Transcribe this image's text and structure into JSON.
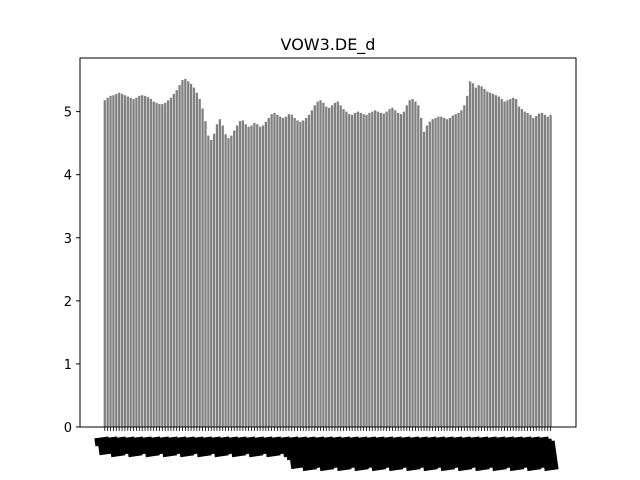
{
  "chart_data": {
    "type": "bar",
    "title": "VOW3.DE_d",
    "xlabel": "",
    "ylabel": "",
    "ylim": [
      0,
      5.85
    ],
    "yticks": [
      0,
      1,
      2,
      3,
      4,
      5
    ],
    "ytick_labels": [
      "0",
      "1",
      "2",
      "3",
      "4",
      "5"
    ],
    "bar_color": "#808080",
    "grid": false,
    "legend": "none",
    "x_tick_labels_note": "illegible overlapping category labels",
    "values": [
      5.18,
      5.22,
      5.25,
      5.26,
      5.28,
      5.3,
      5.28,
      5.26,
      5.24,
      5.22,
      5.2,
      5.22,
      5.25,
      5.26,
      5.25,
      5.23,
      5.2,
      5.16,
      5.14,
      5.12,
      5.12,
      5.14,
      5.18,
      5.22,
      5.28,
      5.34,
      5.42,
      5.5,
      5.52,
      5.48,
      5.44,
      5.38,
      5.3,
      5.2,
      5.05,
      4.85,
      4.62,
      4.55,
      4.65,
      4.8,
      4.88,
      4.78,
      4.64,
      4.58,
      4.62,
      4.7,
      4.78,
      4.85,
      4.86,
      4.8,
      4.76,
      4.78,
      4.82,
      4.8,
      4.76,
      4.78,
      4.84,
      4.9,
      4.96,
      4.98,
      4.95,
      4.92,
      4.9,
      4.92,
      4.96,
      4.95,
      4.9,
      4.86,
      4.84,
      4.86,
      4.9,
      4.95,
      5.02,
      5.1,
      5.16,
      5.18,
      5.14,
      5.08,
      5.06,
      5.1,
      5.14,
      5.16,
      5.1,
      5.04,
      5.0,
      4.96,
      4.95,
      4.98,
      5.0,
      4.98,
      4.96,
      4.95,
      4.98,
      5.0,
      5.02,
      5.0,
      4.98,
      4.97,
      5.0,
      5.04,
      5.06,
      5.02,
      4.98,
      4.96,
      5.0,
      5.1,
      5.18,
      5.2,
      5.16,
      5.1,
      4.9,
      4.68,
      4.78,
      4.84,
      4.88,
      4.9,
      4.92,
      4.92,
      4.9,
      4.88,
      4.9,
      4.94,
      4.96,
      4.98,
      5.02,
      5.1,
      5.25,
      5.48,
      5.45,
      5.38,
      5.42,
      5.4,
      5.36,
      5.32,
      5.3,
      5.28,
      5.26,
      5.24,
      5.2,
      5.16,
      5.18,
      5.2,
      5.22,
      5.2,
      5.08,
      5.04,
      5.0,
      4.98,
      4.95,
      4.9,
      4.93,
      4.97,
      4.98,
      4.95,
      4.92,
      4.95
    ]
  }
}
